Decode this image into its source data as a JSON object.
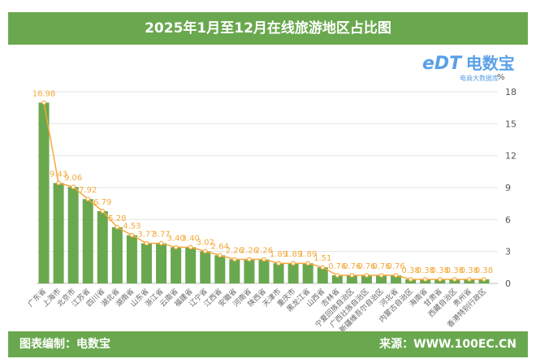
{
  "title": "2025年1月至12月在线旅游地区占比图",
  "footer": {
    "left": "图表编制：电数宝",
    "right": "来源：WWW.100EC.CN"
  },
  "logo": {
    "text": "电数宝",
    "mark": "eDT",
    "sub": "电商大数据库"
  },
  "colors": {
    "bar": "#6aa84f",
    "line": "#f5a93b",
    "header": "#6aa84f"
  },
  "chart_data": {
    "type": "bar+line",
    "unit": "%",
    "ylim": [
      0,
      18
    ],
    "yticks": [
      0,
      3,
      6,
      9,
      12,
      15,
      18
    ],
    "grid": true,
    "categories": [
      "广东省",
      "上海市",
      "北京市",
      "江苏省",
      "四川省",
      "湖北省",
      "湖南省",
      "山东省",
      "浙江省",
      "云南省",
      "福建省",
      "辽宁省",
      "江西省",
      "安徽省",
      "河南省",
      "陕西省",
      "天津市",
      "重庆市",
      "黑龙江省",
      "山西省",
      "吉林省",
      "宁夏回族自治区",
      "广西壮族自治区",
      "新疆维吾尔自治区",
      "河北省",
      "内蒙古自治区",
      "海南省",
      "甘肃省",
      "西藏自治区",
      "贵州省",
      "香港特别行政区"
    ],
    "values": [
      16.98,
      9.43,
      9.06,
      7.92,
      6.79,
      5.28,
      4.53,
      3.77,
      3.77,
      3.4,
      3.4,
      3.02,
      2.64,
      2.26,
      2.26,
      2.26,
      1.89,
      1.89,
      1.89,
      1.51,
      0.76,
      0.76,
      0.76,
      0.76,
      0.76,
      0.38,
      0.38,
      0.38,
      0.38,
      0.38,
      0.38
    ]
  }
}
